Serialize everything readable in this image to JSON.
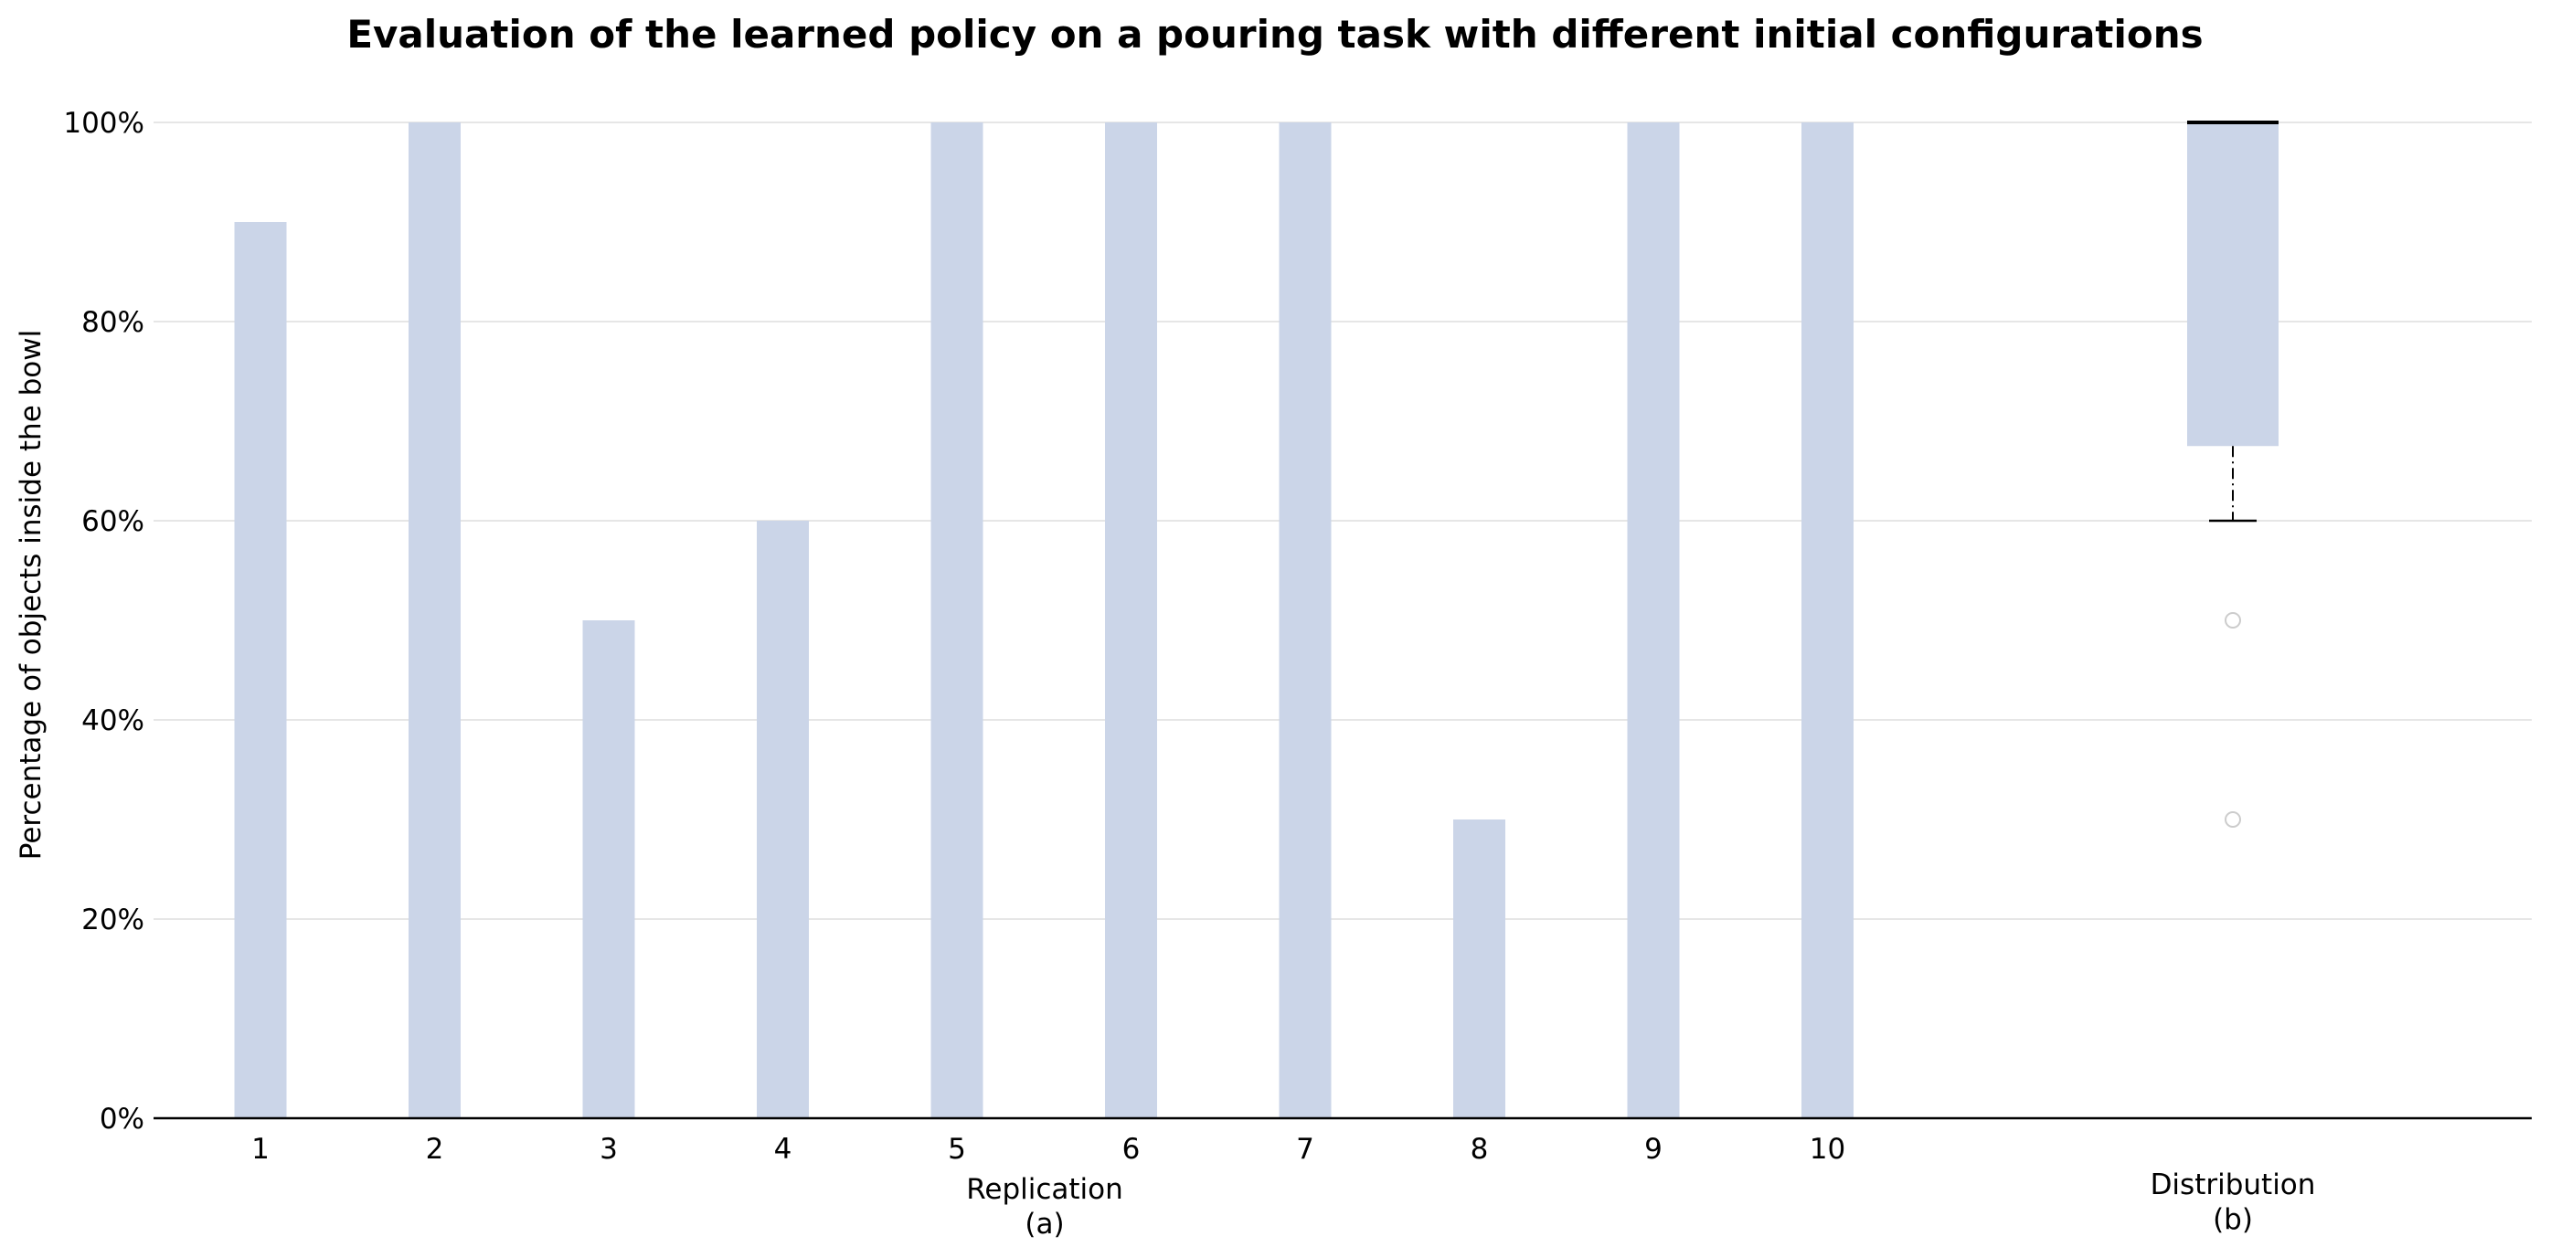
{
  "chart_data": {
    "type": "bar",
    "title": "Evaluation of the learned policy on a pouring task with different initial configurations",
    "ylabel": "Percentage of objects inside the bowl",
    "ylim": [
      0,
      100
    ],
    "yticks": [
      "0%",
      "20%",
      "40%",
      "60%",
      "80%",
      "100%"
    ],
    "grid": true,
    "colors": {
      "bar": "#cbd5e8",
      "median": "#000000",
      "whisker": "#000000",
      "flier": "#cccccc",
      "grid": "#e6e6e6"
    },
    "bars": {
      "xlabel": "Replication",
      "sublabel": "(a)",
      "categories": [
        "1",
        "2",
        "3",
        "4",
        "5",
        "6",
        "7",
        "8",
        "9",
        "10"
      ],
      "values": [
        90,
        100,
        50,
        60,
        100,
        100,
        100,
        30,
        100,
        100
      ]
    },
    "distribution": {
      "type": "boxplot",
      "xlabel": "Distribution",
      "sublabel": "(b)",
      "q1": 67.5,
      "median": 100,
      "q3": 100,
      "whisker_low": 60,
      "whisker_high": 100,
      "outliers": [
        50,
        30
      ]
    }
  }
}
